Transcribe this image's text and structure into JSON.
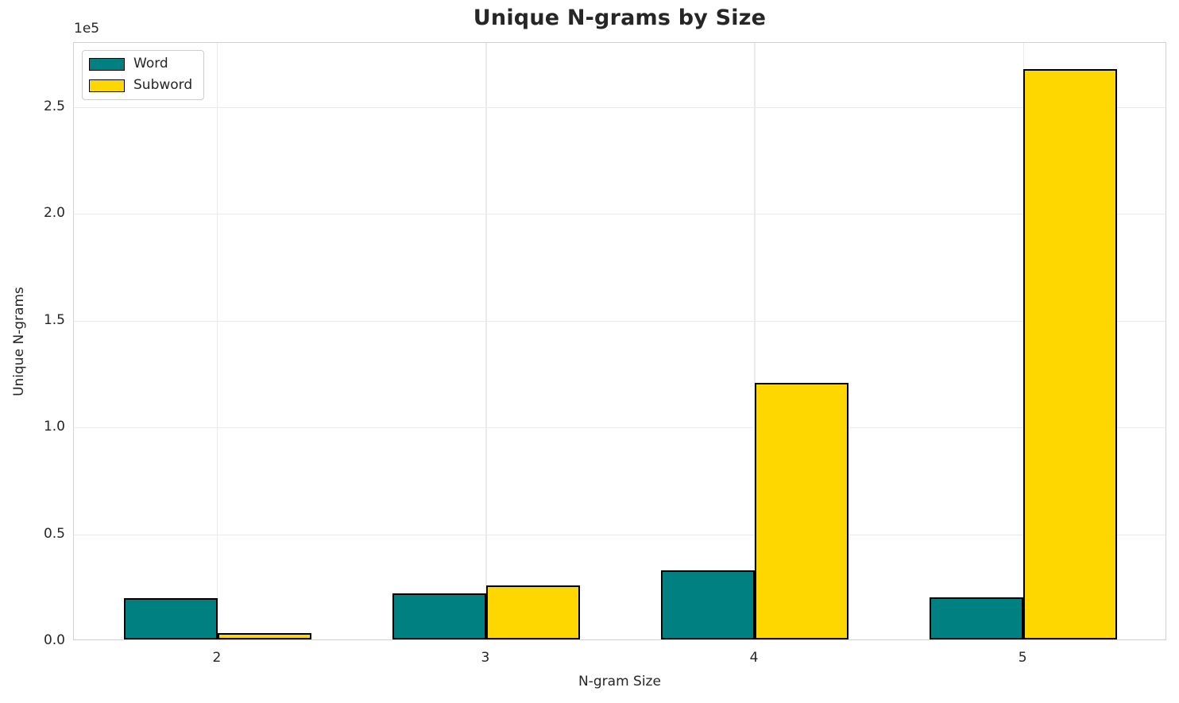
{
  "chart_data": {
    "type": "bar",
    "title": "Unique N-grams by Size",
    "xlabel": "N-gram Size",
    "ylabel": "Unique N-grams",
    "offset_text": "1e5",
    "categories": [
      "2",
      "3",
      "4",
      "5"
    ],
    "category_values": [
      2,
      3,
      4,
      5
    ],
    "series": [
      {
        "name": "Word",
        "color": "#008080",
        "values": [
          19400,
          21500,
          32500,
          19800
        ]
      },
      {
        "name": "Subword",
        "color": "#FFD700",
        "values": [
          3000,
          25200,
          120000,
          267000
        ]
      }
    ],
    "bar_edge_color": "#000000",
    "bar_width_data_units": 0.35,
    "xlim": [
      1.465,
      5.535
    ],
    "ylim": [
      0,
      280000
    ],
    "yticks": [
      0,
      50000,
      100000,
      150000,
      200000,
      250000
    ],
    "ytick_labels": [
      "0.0",
      "0.5",
      "1.0",
      "1.5",
      "2.0",
      "2.5"
    ],
    "grid": true,
    "legend_position": "upper left"
  },
  "colors": {
    "background": "#ffffff",
    "text": "#262626",
    "spine": "#d2d2d2",
    "gridline": "#ebebeb",
    "word_fill": "#008080",
    "subword_fill": "#FFD700",
    "bar_edge": "#000000"
  }
}
